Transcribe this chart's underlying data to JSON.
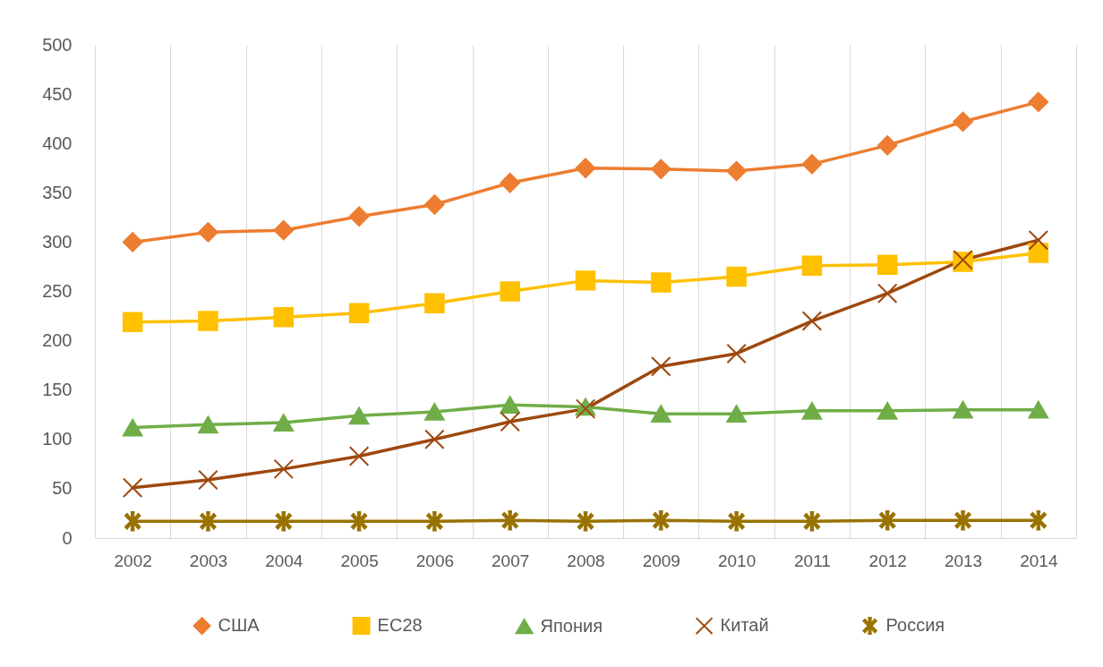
{
  "chart_data": {
    "type": "line",
    "categories": [
      "2002",
      "2003",
      "2004",
      "2005",
      "2006",
      "2007",
      "2008",
      "2009",
      "2010",
      "2011",
      "2012",
      "2013",
      "2014"
    ],
    "series": [
      {
        "name": "США",
        "color": "#ed7d31",
        "marker": "diamond",
        "values": [
          300,
          310,
          312,
          326,
          338,
          360,
          375,
          374,
          372,
          379,
          398,
          422,
          442
        ]
      },
      {
        "name": "ЕС28",
        "color": "#ffc000",
        "marker": "square",
        "values": [
          219,
          220,
          224,
          228,
          238,
          250,
          261,
          259,
          265,
          276,
          277,
          280,
          289
        ]
      },
      {
        "name": "Япония",
        "color": "#70ad47",
        "marker": "triangle",
        "values": [
          112,
          115,
          117,
          124,
          128,
          135,
          133,
          126,
          126,
          129,
          129,
          130,
          130
        ]
      },
      {
        "name": "Китай",
        "color": "#9e480e",
        "marker": "cross",
        "values": [
          51,
          59,
          70,
          83,
          100,
          118,
          131,
          174,
          187,
          220,
          248,
          282,
          302
        ]
      },
      {
        "name": "Россия",
        "color": "#997300",
        "marker": "star",
        "values": [
          17,
          17,
          17,
          17,
          17,
          18,
          17,
          18,
          17,
          17,
          18,
          18,
          18
        ]
      }
    ],
    "ylim": [
      0,
      500
    ],
    "yticks": [
      0,
      50,
      100,
      150,
      200,
      250,
      300,
      350,
      400,
      450,
      500
    ],
    "grid": "x",
    "legend": "bottom",
    "line_style": "solid"
  }
}
